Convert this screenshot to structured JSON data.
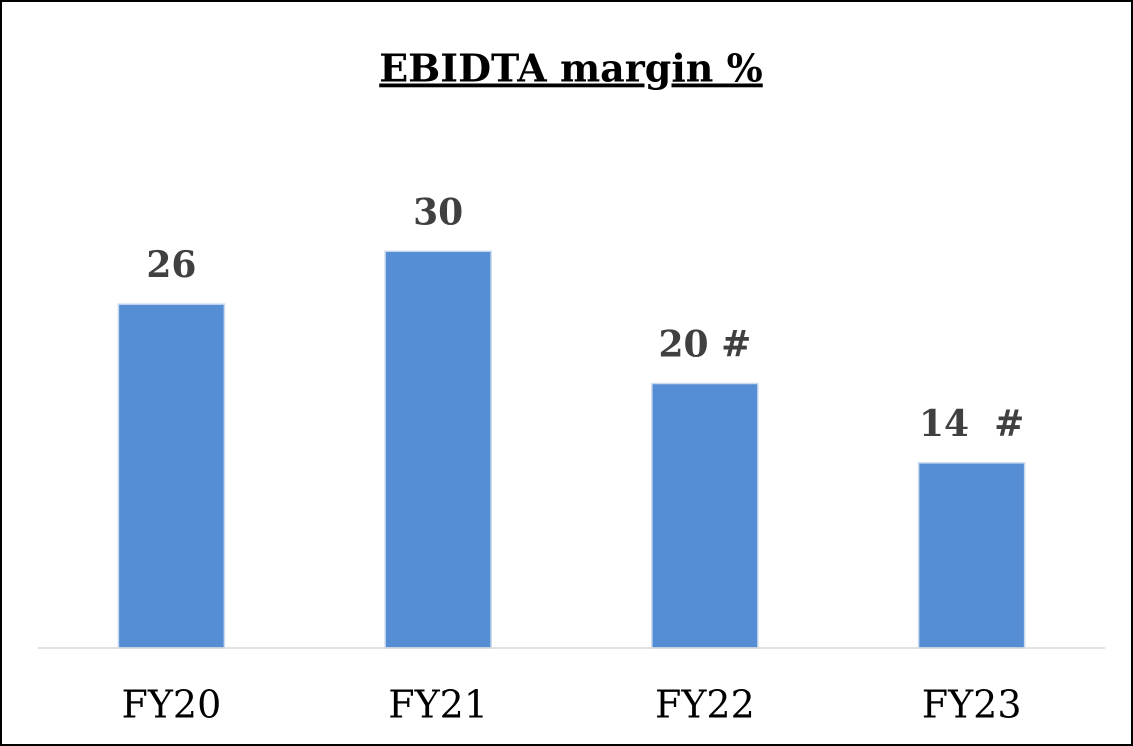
{
  "chart_data": {
    "type": "bar",
    "title": "EBIDTA margin %",
    "categories": [
      "FY20",
      "FY21",
      "FY22",
      "FY23"
    ],
    "values": [
      26,
      30,
      20,
      14
    ],
    "value_labels": [
      "26",
      "30",
      "20 #",
      "14  #"
    ],
    "color": "#558ed5",
    "ylim": [
      0,
      40
    ]
  }
}
